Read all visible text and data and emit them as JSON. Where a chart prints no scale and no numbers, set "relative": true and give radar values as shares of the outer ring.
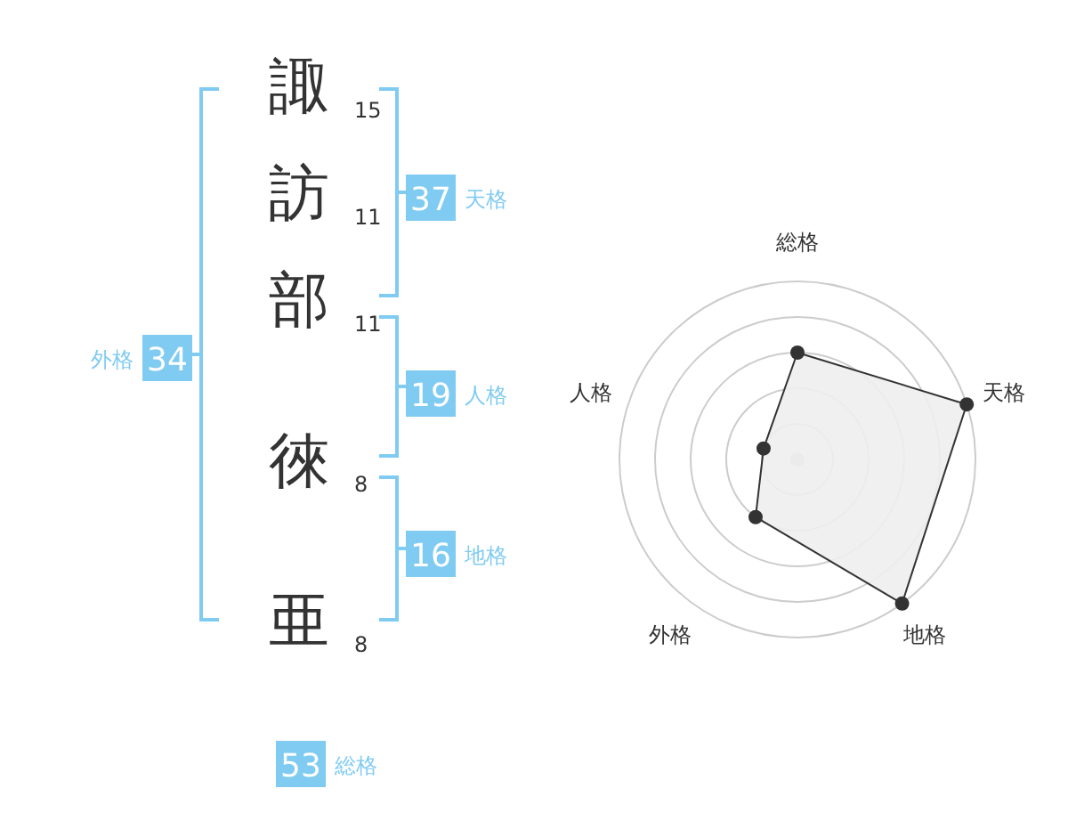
{
  "chart_data": [
    {
      "type": "other",
      "categories": [
        "諏",
        "訪",
        "部",
        "徠",
        "亜"
      ],
      "values": [
        15,
        11,
        11,
        8,
        8
      ],
      "data_labels": true
    },
    {
      "type": "other",
      "categories": [
        "天格",
        "人格",
        "地格",
        "外格",
        "総格"
      ],
      "values": [
        37,
        19,
        16,
        34,
        53
      ],
      "data_labels": true,
      "color": "#7fcbf2"
    },
    {
      "type": "radar",
      "categories": [
        "総格",
        "天格",
        "地格",
        "外格",
        "人格"
      ],
      "relative": true,
      "marker": "circle",
      "series": [
        {
          "color": "#333333",
          "values": [
            0.6,
            1,
            1,
            0.4,
            0.2
          ]
        }
      ]
    }
  ]
}
